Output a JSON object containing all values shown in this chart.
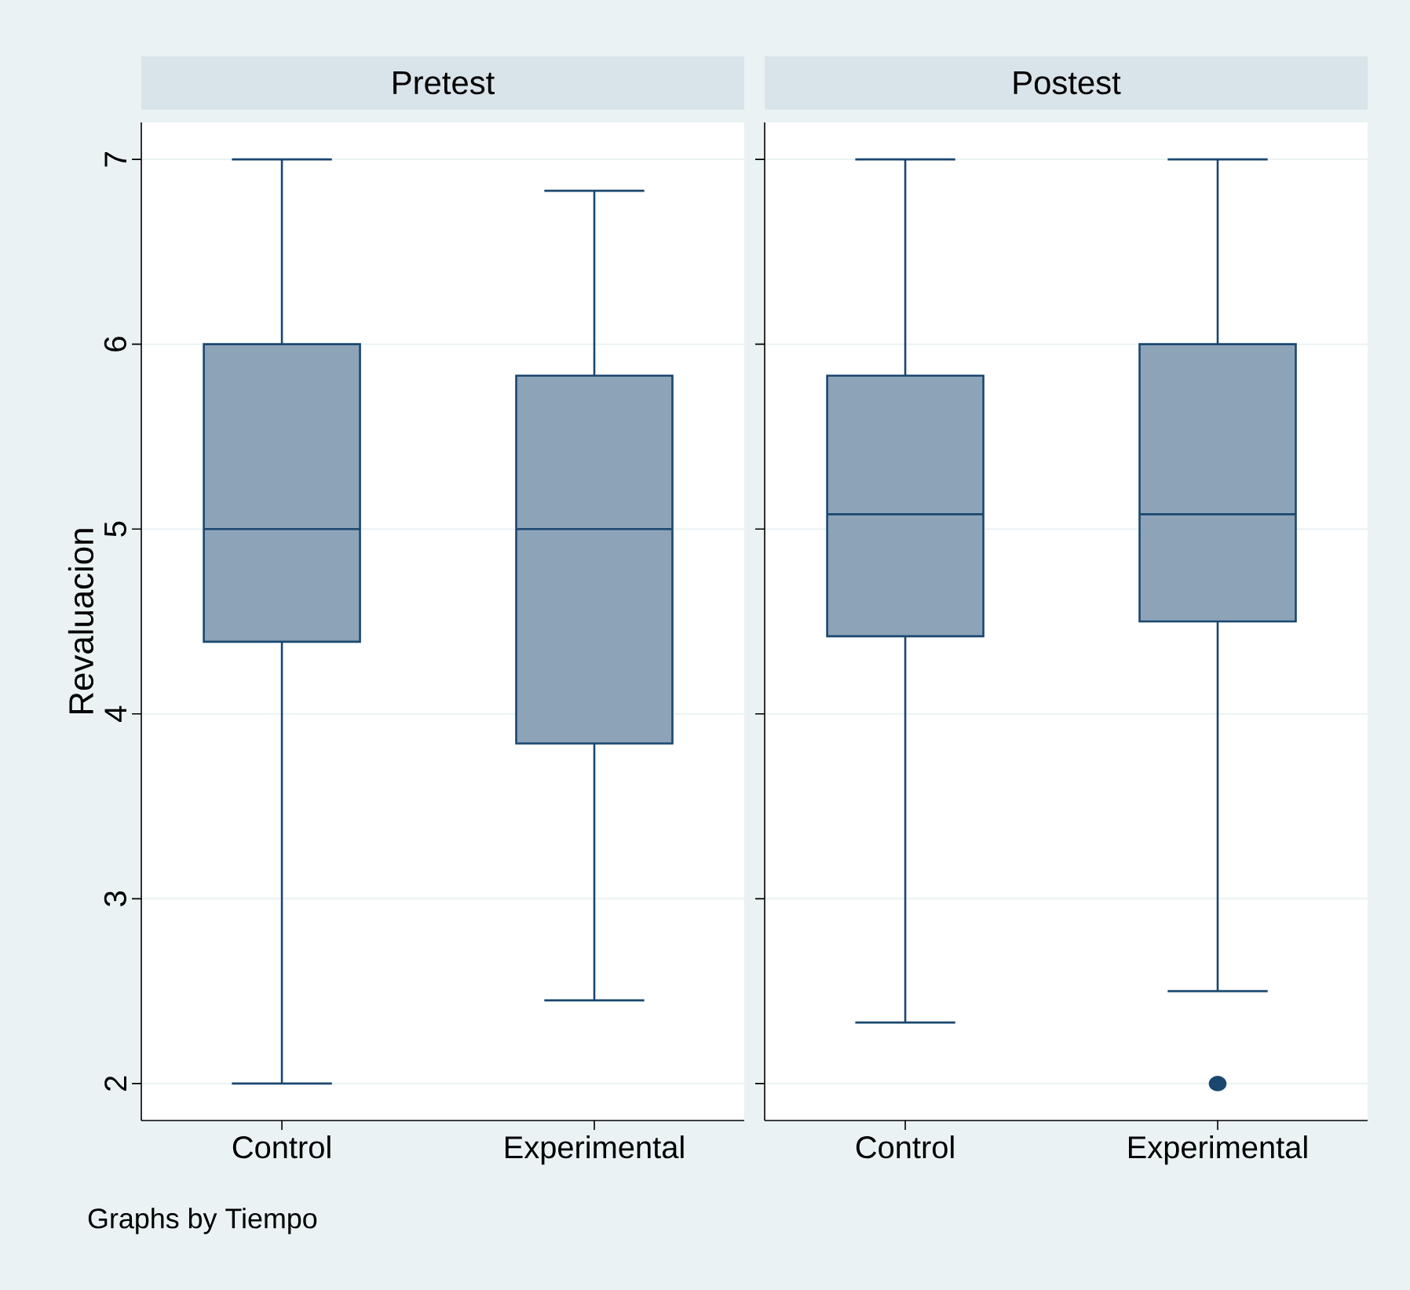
{
  "chart_data": [
    {
      "type": "box",
      "title": "Pretest",
      "ylabel": "Revaluacion",
      "categories": [
        "Control",
        "Experimental"
      ],
      "color": "#8da3b8",
      "grid": "y",
      "ylim": [
        1.8,
        7.2
      ],
      "yticks": [
        2,
        3,
        4,
        5,
        6,
        7
      ],
      "annotations": [
        "Graphs by Tiempo"
      ],
      "boxes": [
        {
          "low": 2,
          "q1": 4.39,
          "median": 5,
          "q3": 6,
          "high": 7
        },
        {
          "low": 2.45,
          "q1": 3.84,
          "median": 5,
          "q3": 5.83,
          "high": 6.83
        }
      ]
    },
    {
      "type": "box",
      "title": "Postest",
      "categories": [
        "Control",
        "Experimental"
      ],
      "color": "#8da3b8",
      "grid": "y",
      "ylim": [
        1.8,
        7.2
      ],
      "yticks": [
        2,
        3,
        4,
        5,
        6,
        7
      ],
      "tick_labels": "x",
      "boxes": [
        {
          "low": 2.33,
          "q1": 4.42,
          "median": 5.08,
          "q3": 5.83,
          "high": 7
        },
        {
          "low": 2.5,
          "q1": 4.5,
          "median": 5.08,
          "q3": 6,
          "high": 7,
          "outliers": [
            2
          ]
        }
      ]
    }
  ]
}
